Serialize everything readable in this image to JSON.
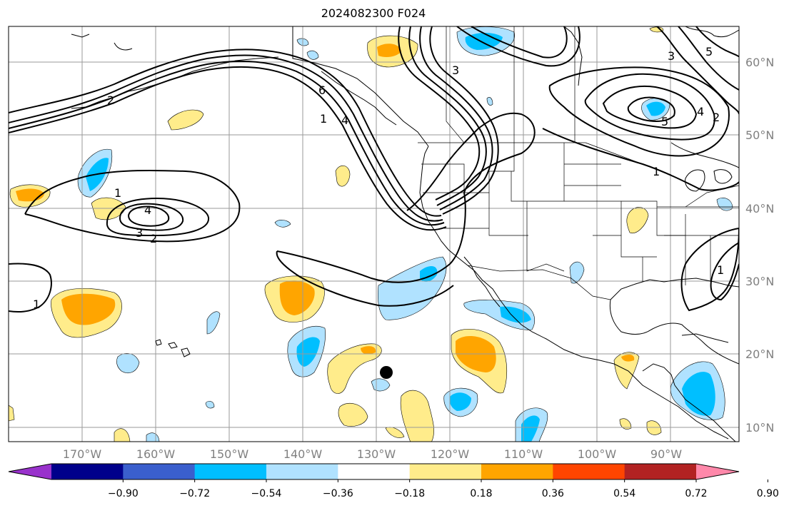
{
  "title": "2024082300 F024",
  "longitude_ticks": [
    "170°W",
    "160°W",
    "150°W",
    "140°W",
    "130°W",
    "120°W",
    "110°W",
    "100°W",
    "90°W"
  ],
  "latitude_ticks": [
    "60°N",
    "50°N",
    "40°N",
    "30°N",
    "20°N",
    "10°N"
  ],
  "colorbar": {
    "tick_labels": [
      "−0.90",
      "−0.72",
      "−0.54",
      "−0.36",
      "−0.18",
      "0.18",
      "0.36",
      "0.54",
      "0.72",
      "0.90"
    ],
    "colors": [
      "#9932cc",
      "#00008b",
      "#3a5fcd",
      "#00bfff",
      "#b0e2ff",
      "#ffffff",
      "#ffec8b",
      "#ffa500",
      "#ff4500",
      "#b22222",
      "#ff88aa"
    ]
  },
  "contour_labels": [
    "6",
    "1",
    "4",
    "3",
    "2",
    "1",
    "4",
    "3",
    "2",
    "1",
    "3",
    "5",
    "5",
    "4",
    "2",
    "1",
    "1"
  ],
  "marker": "storm-center"
}
